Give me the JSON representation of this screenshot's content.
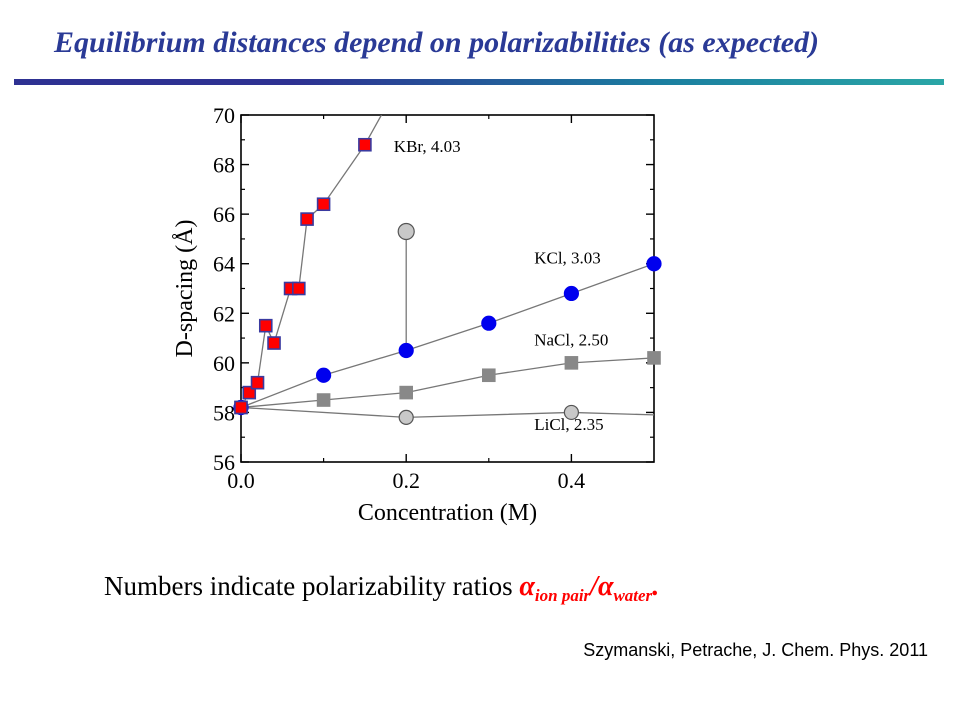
{
  "slide": {
    "title": "Equilibrium distances depend on polarizabilities (as expected)",
    "caption_text": "Numbers indicate polarizability ratios",
    "math": {
      "alpha": "α",
      "sub_ion": "ion pair",
      "slash": "/",
      "sub_water": "water",
      "period": "."
    },
    "citation": "Szymanski, Petrache, J. Chem. Phys. 2011",
    "colors": {
      "title": "#2a3a96",
      "math": "#ff0000",
      "rule_start": "#2e3192",
      "rule_end": "#2aa6a6"
    }
  },
  "chart_data": {
    "type": "line",
    "xlabel": "Concentration (M)",
    "ylabel": "D-spacing (Å)",
    "xlim": [
      0.0,
      0.5
    ],
    "ylim": [
      56,
      70
    ],
    "xticks": [
      "0.0",
      "0.2",
      "0.4"
    ],
    "yticks": [
      "56",
      "58",
      "60",
      "62",
      "64",
      "66",
      "68",
      "70"
    ],
    "grid": false,
    "series": [
      {
        "name": "KBr, 4.03",
        "marker": "square",
        "fill": "#ff0000",
        "edge": "#3a3aa0",
        "x": [
          0.0,
          0.01,
          0.02,
          0.03,
          0.04,
          0.06,
          0.07,
          0.08,
          0.1,
          0.15
        ],
        "y": [
          58.2,
          58.8,
          59.2,
          61.5,
          60.8,
          63.0,
          63.0,
          65.8,
          66.4,
          68.8
        ],
        "trend_to": [
          0.17,
          70.0
        ]
      },
      {
        "name": "KCl, 3.03",
        "marker": "circle",
        "fill": "#0000ee",
        "edge": "#0000ee",
        "x": [
          0.0,
          0.1,
          0.2,
          0.3,
          0.4,
          0.5
        ],
        "y": [
          58.2,
          59.5,
          60.5,
          61.6,
          62.8,
          64.0
        ]
      },
      {
        "name": "NaCl, 2.50",
        "marker": "square",
        "fill": "#888888",
        "edge": "#888888",
        "x": [
          0.0,
          0.1,
          0.2,
          0.3,
          0.4,
          0.5
        ],
        "y": [
          58.2,
          58.5,
          58.8,
          59.5,
          60.0,
          60.2
        ]
      },
      {
        "name": "LiCl, 2.35",
        "marker": "circle",
        "fill": "#c8c8c8",
        "edge": "#555555",
        "x": [
          0.0,
          0.2,
          0.4,
          0.5
        ],
        "y": [
          58.2,
          57.8,
          58.0,
          57.9
        ],
        "hidden_markers": [
          3
        ]
      }
    ],
    "extra_points": [
      {
        "x": 0.2,
        "y": 65.3,
        "marker": "circle",
        "fill": "#c8c8c8",
        "edge": "#555555",
        "connect_to_y": 60.5
      }
    ],
    "annotations": [
      {
        "text": "KBr, 4.03",
        "x": 0.185,
        "y": 68.5
      },
      {
        "text": "KCl, 3.03",
        "x": 0.355,
        "y": 64.0
      },
      {
        "text": "NaCl, 2.50",
        "x": 0.355,
        "y": 60.7
      },
      {
        "text": "LiCl, 2.35",
        "x": 0.355,
        "y": 57.3
      }
    ]
  }
}
